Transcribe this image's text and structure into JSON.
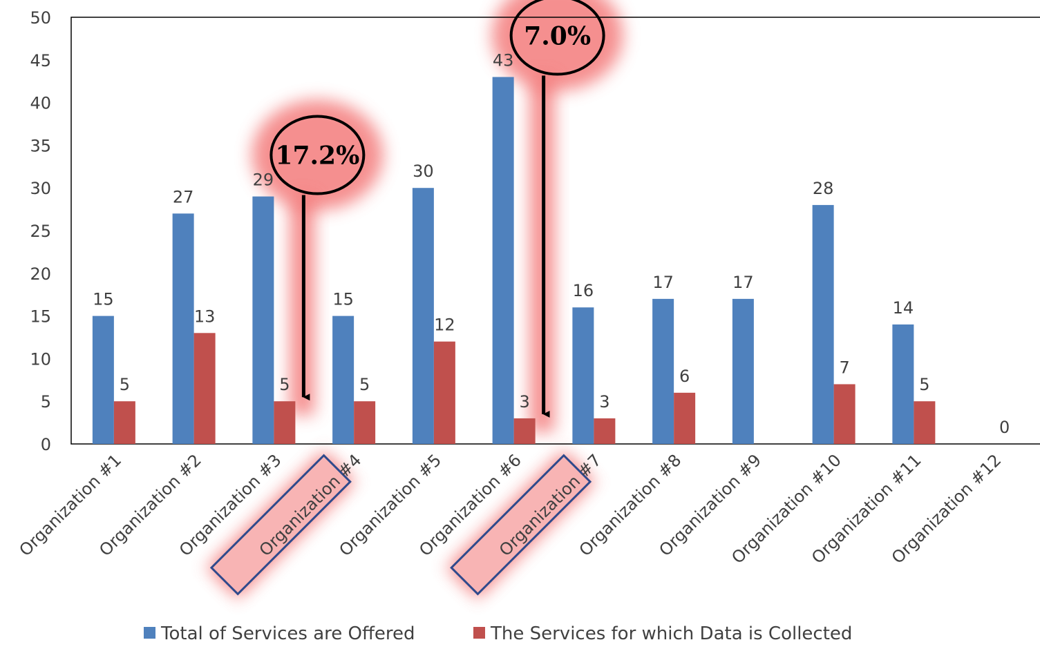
{
  "chart_data": {
    "type": "bar",
    "title": "",
    "xlabel": "",
    "ylabel": "",
    "ylim": [
      0,
      50
    ],
    "yticks": [
      0,
      5,
      10,
      15,
      20,
      25,
      30,
      35,
      40,
      45,
      50
    ],
    "grid": false,
    "legend_position": "bottom",
    "categories": [
      "Organization #1",
      "Organization #2",
      "Organization #3",
      "Organization #4",
      "Organization #5",
      "Organization #6",
      "Organization #7",
      "Organization #8",
      "Organization #9",
      "Organization #10",
      "Organization #11",
      "Organization #12"
    ],
    "series": [
      {
        "name": "Total of Services are Offered",
        "color": "#4f81bd",
        "values": [
          15,
          27,
          29,
          15,
          30,
          43,
          16,
          17,
          17,
          28,
          14,
          null
        ],
        "labels": [
          "15",
          "27",
          "29",
          "15",
          "30",
          "43",
          "16",
          "17",
          "17",
          "28",
          "14",
          ""
        ]
      },
      {
        "name": "The Services for which Data is Collected",
        "color": "#c0504d",
        "values": [
          5,
          13,
          5,
          5,
          12,
          3,
          3,
          6,
          null,
          7,
          5,
          0
        ],
        "labels": [
          "5",
          "13",
          "5",
          "5",
          "12",
          "3",
          "3",
          "6",
          "",
          "7",
          "5",
          "0"
        ]
      }
    ],
    "annotations": [
      {
        "category_index": 2,
        "text": "17.2%",
        "from": 29,
        "to": 5
      },
      {
        "category_index": 5,
        "text": "7.0%",
        "from": 43,
        "to": 3
      }
    ],
    "highlighted_categories": [
      2,
      5
    ],
    "highlight_color": "#f26b6b"
  }
}
